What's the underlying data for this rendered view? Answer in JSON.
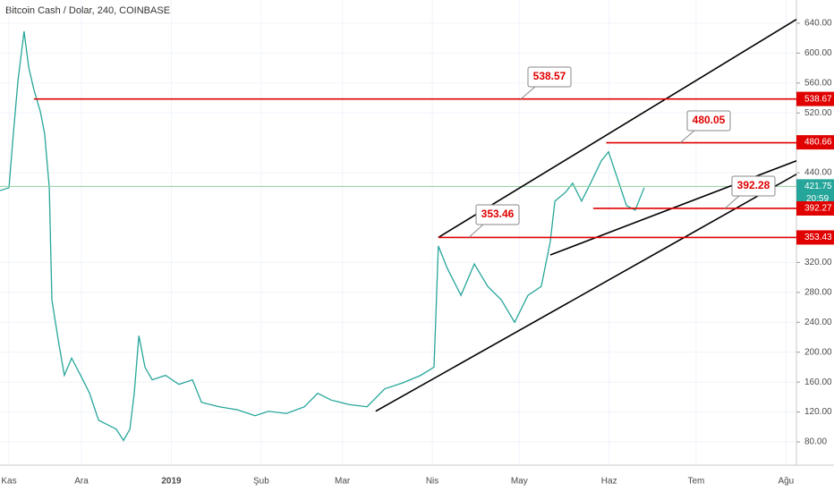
{
  "chart_data": {
    "type": "line",
    "title": "Bitcoin Cash / Dolar, 240, COINBASE",
    "x": [
      1.9,
      5,
      6.5,
      8.1,
      10.2,
      11.8,
      13.6,
      15.8,
      17.3,
      18.9,
      19.8,
      22,
      24.1,
      26.6,
      29.7,
      32.8,
      35.9,
      39,
      42,
      44.5,
      46.7,
      48.2,
      49.8,
      51.9,
      54.4,
      59,
      63.6,
      68.3,
      71.4,
      77.5,
      83.7,
      89.9,
      94.5,
      100.7,
      106.9,
      111.5,
      116.1,
      122.3,
      128.5,
      134.6,
      140.8,
      147,
      151.6,
      153.1,
      156.2,
      160.9,
      165.5,
      170.1,
      174.8,
      179.4,
      184,
      188.6,
      191.7,
      193.3,
      197,
      199.4,
      202.5,
      205.6,
      209.3,
      211.8,
      214.9,
      218,
      221,
      224.1
    ],
    "series": [
      {
        "color": "#26a69a",
        "values": [
          416,
          420,
          492,
          563,
          629,
          581,
          551,
          522,
          492,
          420,
          270,
          216,
          169,
          192,
          169,
          145,
          109,
          103,
          97,
          82,
          97,
          145,
          222,
          180,
          163,
          169,
          157,
          163,
          133,
          127,
          123,
          115,
          121,
          118,
          127,
          145,
          136,
          130,
          127,
          151,
          159,
          169,
          180,
          342,
          312,
          276,
          318,
          288,
          270,
          240,
          276,
          288,
          348,
          402,
          414,
          426,
          402,
          426,
          456,
          468,
          432,
          396,
          390,
          420
        ]
      }
    ],
    "xlim": [
      1.9,
      276.6
    ],
    "xticks": [
      {
        "value": 0,
        "label": "Kas"
      },
      {
        "value": 30,
        "label": "Ara"
      },
      {
        "value": 61,
        "label": "2019"
      },
      {
        "value": 92,
        "label": "Şub"
      },
      {
        "value": 120,
        "label": "Mar"
      },
      {
        "value": 151,
        "label": "Nis"
      },
      {
        "value": 181,
        "label": "May"
      },
      {
        "value": 212,
        "label": "Haz"
      },
      {
        "value": 242,
        "label": "Tem"
      },
      {
        "value": 273,
        "label": "Ağu"
      }
    ],
    "ylim": [
      48.9,
      671
    ],
    "yticks": [
      {
        "value": 80,
        "label": "80.00"
      },
      {
        "value": 120,
        "label": "120.00"
      },
      {
        "value": 160,
        "label": "160.00"
      },
      {
        "value": 200,
        "label": "200.00"
      },
      {
        "value": 240,
        "label": "240.00"
      },
      {
        "value": 280,
        "label": "280.00"
      },
      {
        "value": 320,
        "label": "320.00"
      },
      {
        "value": 440,
        "label": "440.00"
      },
      {
        "value": 520,
        "label": "520.00"
      },
      {
        "value": 560,
        "label": "560.00"
      },
      {
        "value": 600,
        "label": "600.00"
      },
      {
        "value": 640,
        "label": "640.00"
      }
    ],
    "hlines": [
      {
        "x_start": 13.6,
        "value": 538.57,
        "axis_value": 538.67
      },
      {
        "x_start": 211,
        "value": 480.05,
        "axis_value": 480.66
      },
      {
        "x_start": 206.5,
        "value": 392.28,
        "axis_value": 392.27
      },
      {
        "x_start": 153.1,
        "value": 353.46,
        "axis_value": 353.43
      }
    ],
    "last": {
      "value": 421.75,
      "time": "20:59"
    },
    "trendlines": [
      {
        "x": [
          131.5,
          276.6
        ],
        "y": [
          121,
          438
        ]
      },
      {
        "x": [
          153.1,
          276.6
        ],
        "y": [
          353.5,
          645
        ]
      },
      {
        "x": [
          191.7,
          276.6
        ],
        "y": [
          330,
          456
        ]
      }
    ]
  }
}
